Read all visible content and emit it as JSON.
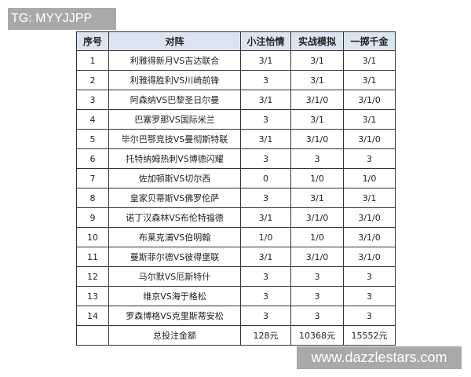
{
  "watermark_top": "TG: MYYJJPP",
  "watermark_bottom": "www.dazzlestars.com",
  "table": {
    "headers": [
      "序号",
      "对阵",
      "小注怡情",
      "实战模拟",
      "一掷千金"
    ],
    "rows": [
      [
        "1",
        "利雅得新月VS吉达联合",
        "3/1",
        "3/1",
        "3/1"
      ],
      [
        "2",
        "利雅得胜利VS川崎前锋",
        "3",
        "3/1",
        "3/1"
      ],
      [
        "3",
        "阿森纳VS巴黎圣日尔曼",
        "3/1",
        "3/1/0",
        "3/1/0"
      ],
      [
        "4",
        "巴塞罗那VS国际米兰",
        "3",
        "3/1",
        "3/1"
      ],
      [
        "5",
        "毕尔巴鄂竞技VS曼彻斯特联",
        "3/1",
        "3/1/0",
        "3/1/0"
      ],
      [
        "6",
        "托特纳姆热刺VS博德闪耀",
        "3",
        "3",
        "3"
      ],
      [
        "7",
        "佐加顿斯VS切尔西",
        "0",
        "1/0",
        "1/0"
      ],
      [
        "8",
        "皇家贝蒂斯VS佛罗伦萨",
        "3",
        "3/1",
        "3/1"
      ],
      [
        "9",
        "诺丁汉森林VS布伦特福德",
        "3/1",
        "3/1/0",
        "3/1/0"
      ],
      [
        "10",
        "布莱克浦VS伯明翰",
        "1/0",
        "1/0",
        "3/1/0"
      ],
      [
        "11",
        "曼斯菲尔德VS彼得堡联",
        "3/1",
        "3/1/0",
        "3/1/0"
      ],
      [
        "12",
        "马尔默VS厄斯特什",
        "3",
        "3",
        "3"
      ],
      [
        "13",
        "维京VS海于格松",
        "3",
        "3",
        "3"
      ],
      [
        "14",
        "罗森博格VS克里斯蒂安松",
        "3",
        "3",
        "3"
      ]
    ],
    "total": [
      "",
      "总投注金额",
      "128元",
      "10368元",
      "15552元"
    ]
  }
}
